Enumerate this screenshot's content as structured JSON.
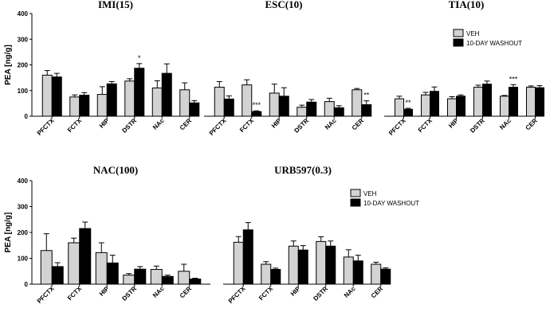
{
  "chart_data": [
    {
      "type": "bar",
      "title": "IMI(15)",
      "ylabel": "PEA [ng/g]",
      "ylim": [
        0,
        400
      ],
      "yticks": [
        "0",
        "100",
        "200",
        "300",
        "400"
      ],
      "categories": [
        "PFCTX",
        "FCTX",
        "HIP",
        "DSTR",
        "NAc",
        "CER"
      ],
      "series": [
        {
          "name": "VEH",
          "color": "#d3d3d3",
          "values": [
            160,
            75,
            85,
            137,
            110,
            103
          ],
          "errors": [
            18,
            8,
            30,
            9,
            28,
            27
          ]
        },
        {
          "name": "10-DAY WASHOUT",
          "color": "#000000",
          "values": [
            153,
            82,
            126,
            187,
            167,
            52
          ],
          "errors": [
            14,
            10,
            9,
            18,
            37,
            9
          ]
        }
      ],
      "annotations": [
        {
          "category": "DSTR",
          "series": "10-DAY WASHOUT",
          "text": "*"
        }
      ]
    },
    {
      "type": "bar",
      "title": "ESC(10)",
      "ylim": [
        0,
        400
      ],
      "categories": [
        "PFCTX",
        "FCTX",
        "HIP",
        "DSTR",
        "NAc",
        "CER"
      ],
      "series": [
        {
          "name": "VEH",
          "color": "#d3d3d3",
          "values": [
            113,
            122,
            90,
            35,
            57,
            103
          ],
          "errors": [
            22,
            20,
            35,
            8,
            13,
            5
          ]
        },
        {
          "name": "10-DAY WASHOUT",
          "color": "#000000",
          "values": [
            67,
            18,
            78,
            55,
            33,
            45
          ],
          "errors": [
            12,
            3,
            33,
            10,
            8,
            15
          ]
        }
      ],
      "annotations": [
        {
          "category": "FCTX",
          "series": "10-DAY WASHOUT",
          "text": "***"
        },
        {
          "category": "CER",
          "series": "10-DAY WASHOUT",
          "text": "**"
        }
      ]
    },
    {
      "type": "bar",
      "title": "TIA(10)",
      "ylim": [
        0,
        400
      ],
      "categories": [
        "PFCTX",
        "FCTX",
        "HIP",
        "DSTR",
        "NAc",
        "CER"
      ],
      "series": [
        {
          "name": "VEH",
          "color": "#d3d3d3",
          "values": [
            68,
            83,
            68,
            113,
            78,
            113
          ],
          "errors": [
            10,
            10,
            8,
            8,
            3,
            5
          ]
        },
        {
          "name": "10-DAY WASHOUT",
          "color": "#000000",
          "values": [
            27,
            97,
            78,
            125,
            113,
            111
          ],
          "errors": [
            4,
            17,
            5,
            12,
            10,
            8
          ]
        }
      ],
      "annotations": [
        {
          "category": "PFCTX",
          "series": "10-DAY WASHOUT",
          "text": "**"
        },
        {
          "category": "NAc",
          "series": "10-DAY WASHOUT",
          "text": "***"
        }
      ]
    },
    {
      "type": "bar",
      "title": "NAC(100)",
      "ylabel": "PEA [ng/g]",
      "ylim": [
        0,
        400
      ],
      "yticks": [
        "0",
        "100",
        "200",
        "300",
        "400"
      ],
      "categories": [
        "PFCTX",
        "FCTX",
        "HIP",
        "DSTR",
        "NAc",
        "CER"
      ],
      "series": [
        {
          "name": "VEH",
          "color": "#d3d3d3",
          "values": [
            130,
            160,
            122,
            35,
            57,
            50
          ],
          "errors": [
            65,
            18,
            38,
            6,
            13,
            27
          ]
        },
        {
          "name": "10-DAY WASHOUT",
          "color": "#000000",
          "values": [
            68,
            215,
            82,
            58,
            30,
            20
          ],
          "errors": [
            15,
            25,
            30,
            10,
            5,
            3
          ]
        }
      ],
      "annotations": []
    },
    {
      "type": "bar",
      "title": "URB597(0.3)",
      "ylim": [
        0,
        400
      ],
      "categories": [
        "PFCTX",
        "FCTX",
        "HIP",
        "DSTR",
        "NAc",
        "CER"
      ],
      "series": [
        {
          "name": "VEH",
          "color": "#d3d3d3",
          "values": [
            162,
            77,
            147,
            165,
            105,
            77
          ],
          "errors": [
            22,
            10,
            20,
            18,
            28,
            8
          ]
        },
        {
          "name": "10-DAY WASHOUT",
          "color": "#000000",
          "values": [
            210,
            57,
            132,
            147,
            90,
            58
          ],
          "errors": [
            28,
            5,
            17,
            20,
            22,
            5
          ]
        }
      ],
      "annotations": []
    }
  ],
  "legend": {
    "entries": [
      {
        "label": "VEH",
        "color": "#d3d3d3"
      },
      {
        "label": "10-DAY WASHOUT",
        "color": "#000000"
      }
    ]
  }
}
